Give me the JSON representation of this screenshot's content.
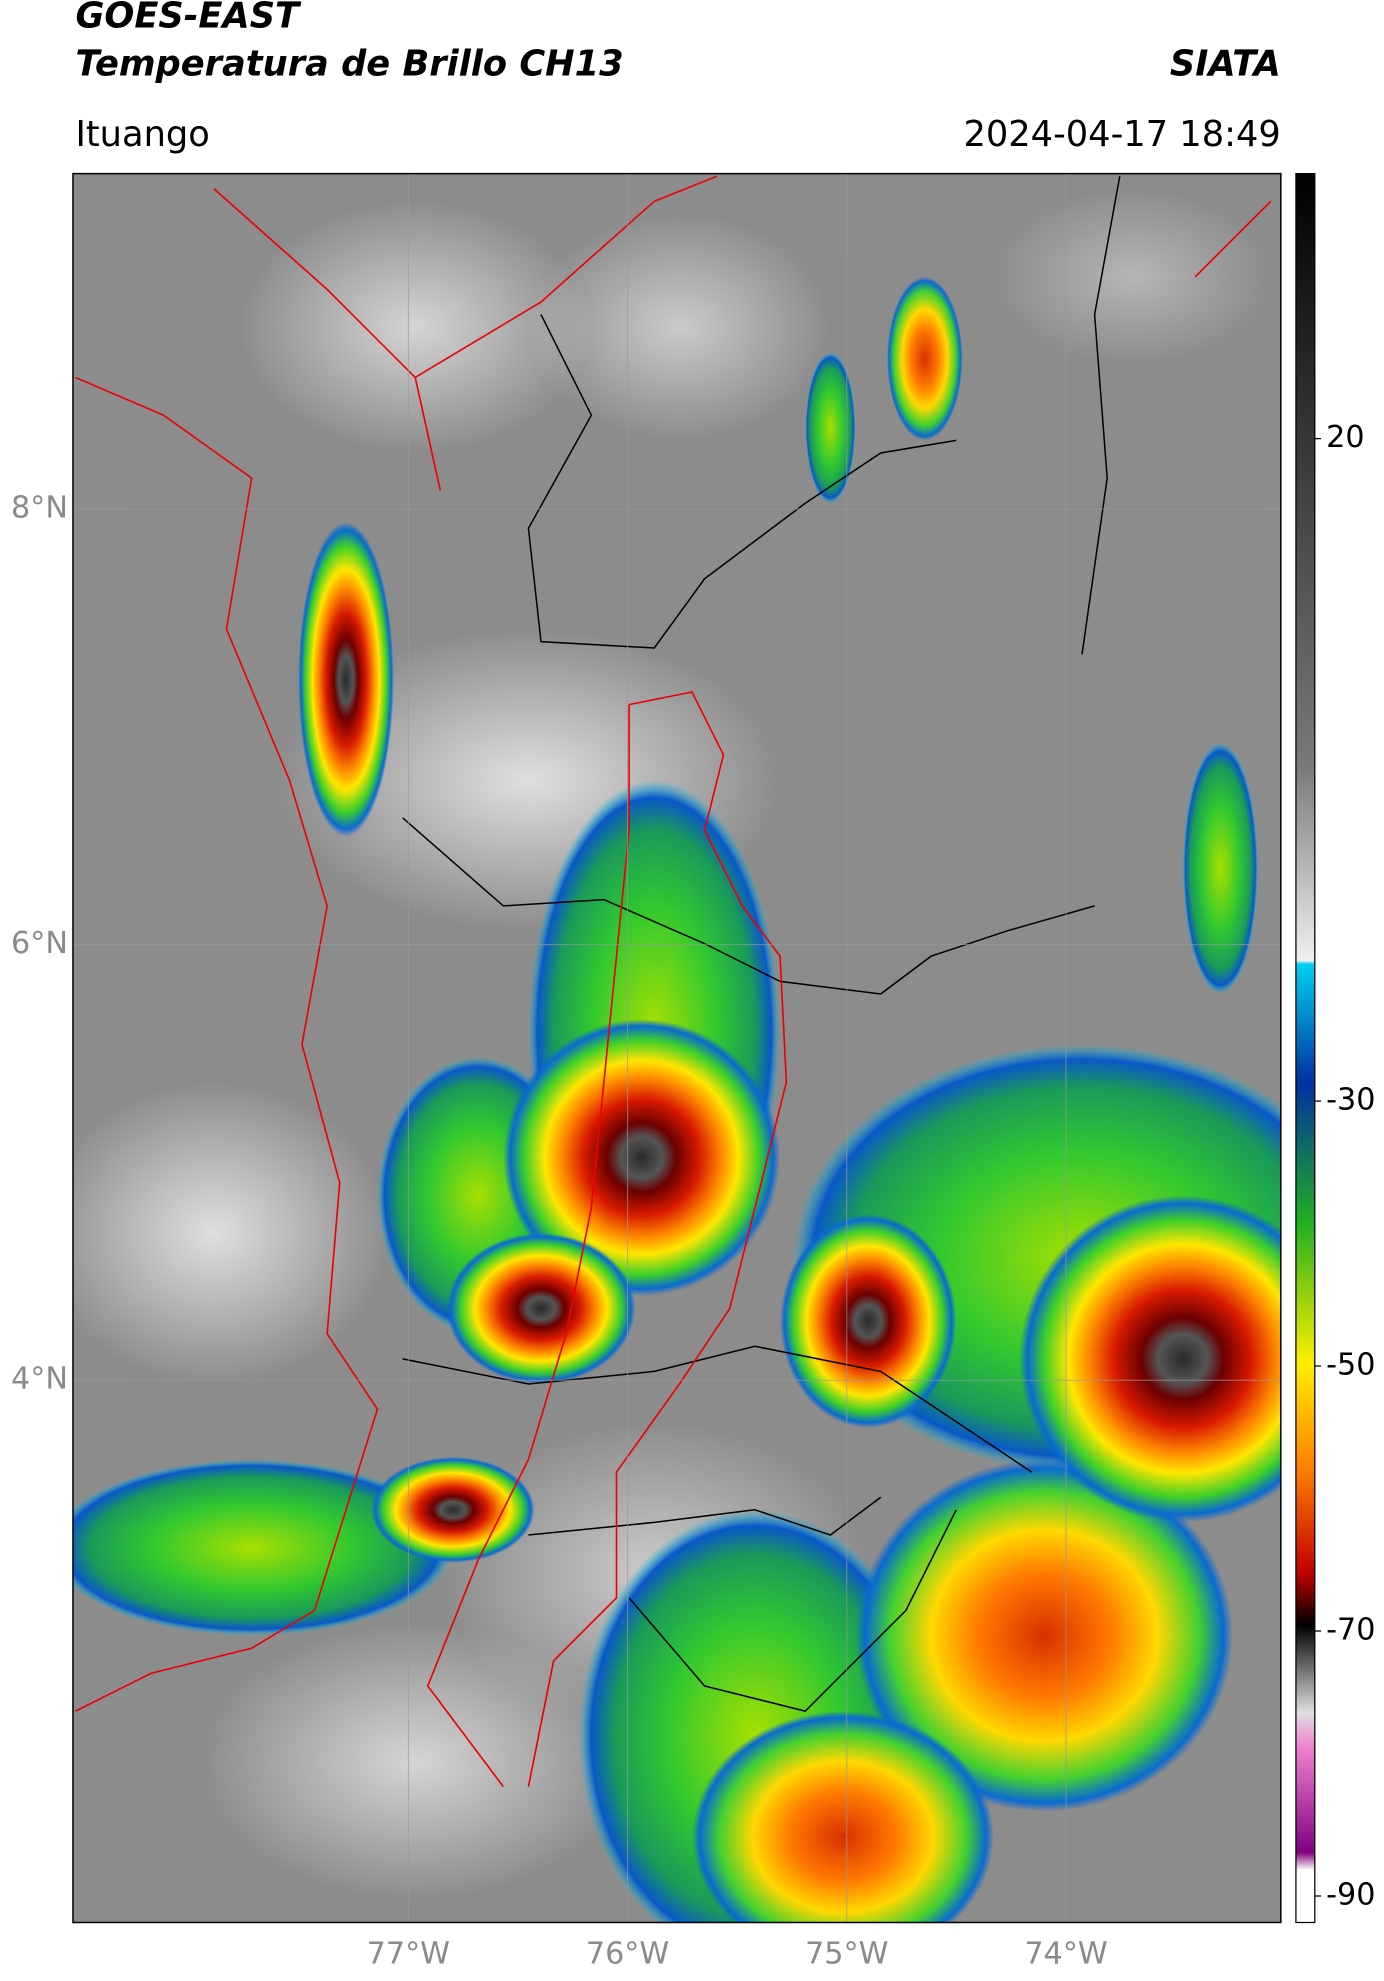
{
  "header": {
    "satellite": "GOES-EAST",
    "product": "Temperatura de Brillo CH13",
    "agency": "SIATA",
    "location": "Ituango",
    "datetime": "2024-04-17 18:49"
  },
  "map": {
    "xlim": [
      -78.53,
      -73.02
    ],
    "ylim": [
      1.51,
      9.54
    ],
    "lat_ticks": [
      {
        "value": 8,
        "label": "8°N"
      },
      {
        "value": 6,
        "label": "6°N"
      },
      {
        "value": 4,
        "label": "4°N"
      }
    ],
    "lon_ticks": [
      {
        "value": -77,
        "label": "77°W"
      },
      {
        "value": -76,
        "label": "76°W"
      },
      {
        "value": -75,
        "label": "75°W"
      },
      {
        "value": -74,
        "label": "74°W"
      }
    ]
  },
  "colorbar": {
    "lim": [
      -92,
      40
    ],
    "ticks": [
      20,
      -30,
      -50,
      -70,
      -90
    ]
  }
}
